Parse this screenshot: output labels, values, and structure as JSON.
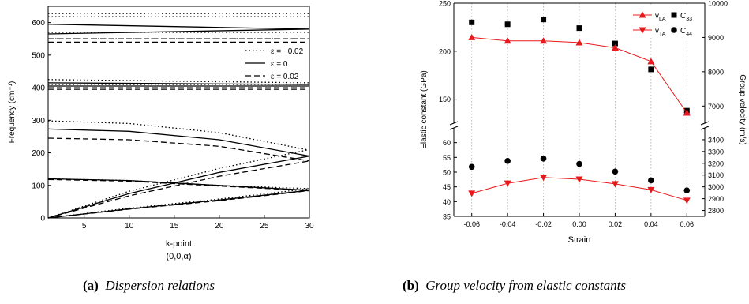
{
  "captions": {
    "a": {
      "label": "(a)",
      "text": "Dispersion relations"
    },
    "b": {
      "label": "(b)",
      "text": "Group velocity from elastic constants"
    }
  },
  "chart_data": [
    {
      "type": "line",
      "ylabel": "Frequency (cm⁻¹)",
      "xlabel": "k-point",
      "xlabel2": "(0,0,α)",
      "xlim": [
        1,
        30
      ],
      "ylim": [
        0,
        650
      ],
      "xticks": [
        5,
        10,
        15,
        20,
        25,
        30
      ],
      "yticks": [
        0,
        100,
        200,
        300,
        400,
        500,
        600
      ],
      "legend": {
        "placement": "right",
        "entries": [
          {
            "label": "ε = −0.02",
            "style": "dotted"
          },
          {
            "label": "ε = 0",
            "style": "solid"
          },
          {
            "label": "ε = 0.02",
            "style": "dashed"
          }
        ]
      },
      "series": [
        {
          "strain": "-0.02",
          "style": "dotted",
          "bands": [
            {
              "x": [
                1,
                30
              ],
              "y": [
                628,
                628
              ]
            },
            {
              "x": [
                1,
                30
              ],
              "y": [
                618,
                618
              ]
            },
            {
              "x": [
                1,
                30
              ],
              "y": [
                570,
                570
              ]
            },
            {
              "x": [
                1,
                30
              ],
              "y": [
                550,
                550
              ]
            },
            {
              "x": [
                1,
                30
              ],
              "y": [
                425,
                415
              ]
            },
            {
              "x": [
                1,
                30
              ],
              "y": [
                410,
                410
              ]
            },
            {
              "x": [
                1,
                10,
                20,
                30
              ],
              "y": [
                298,
                290,
                262,
                208
              ]
            },
            {
              "x": [
                1,
                10,
                20,
                30
              ],
              "y": [
                120,
                115,
                100,
                90
              ]
            },
            {
              "x": [
                1,
                10,
                20,
                30
              ],
              "y": [
                0,
                82,
                152,
                210
              ]
            },
            {
              "x": [
                1,
                10,
                20,
                30
              ],
              "y": [
                0,
                30,
                58,
                90
              ]
            }
          ]
        },
        {
          "strain": "0",
          "style": "solid",
          "bands": [
            {
              "x": [
                1,
                30
              ],
              "y": [
                595,
                580
              ]
            },
            {
              "x": [
                1,
                30
              ],
              "y": [
                565,
                580
              ]
            },
            {
              "x": [
                1,
                30
              ],
              "y": [
                415,
                410
              ]
            },
            {
              "x": [
                1,
                30
              ],
              "y": [
                405,
                405
              ]
            },
            {
              "x": [
                1,
                10,
                20,
                30
              ],
              "y": [
                273,
                266,
                240,
                190
              ]
            },
            {
              "x": [
                1,
                10,
                20,
                30
              ],
              "y": [
                120,
                115,
                100,
                85
              ]
            },
            {
              "x": [
                1,
                10,
                20,
                30
              ],
              "y": [
                0,
                75,
                140,
                190
              ]
            },
            {
              "x": [
                1,
                10,
                20,
                30
              ],
              "y": [
                0,
                28,
                55,
                85
              ]
            }
          ]
        },
        {
          "strain": "0.02",
          "style": "dashed",
          "bands": [
            {
              "x": [
                1,
                30
              ],
              "y": [
                550,
                550
              ]
            },
            {
              "x": [
                1,
                30
              ],
              "y": [
                540,
                540
              ]
            },
            {
              "x": [
                1,
                30
              ],
              "y": [
                400,
                400
              ]
            },
            {
              "x": [
                1,
                30
              ],
              "y": [
                395,
                395
              ]
            },
            {
              "x": [
                1,
                10,
                20,
                30
              ],
              "y": [
                245,
                240,
                220,
                175
              ]
            },
            {
              "x": [
                1,
                10,
                20,
                30
              ],
              "y": [
                118,
                113,
                98,
                84
              ]
            },
            {
              "x": [
                1,
                10,
                20,
                30
              ],
              "y": [
                0,
                68,
                128,
                175
              ]
            },
            {
              "x": [
                1,
                10,
                20,
                30
              ],
              "y": [
                0,
                27,
                53,
                84
              ]
            }
          ]
        }
      ]
    },
    {
      "type": "scatter",
      "xlabel": "Strain",
      "ylabel": "Elastic constant (GPa)",
      "y2label": "Group velocity (m/s)",
      "x": [
        -0.06,
        -0.04,
        -0.02,
        0.0,
        0.02,
        0.04,
        0.06
      ],
      "xticks": [
        -0.06,
        -0.04,
        -0.02,
        0.0,
        0.02,
        0.04,
        0.06
      ],
      "xtick_labels": [
        "-0.06",
        "-0.04",
        "-0.02",
        "0.00",
        "0.02",
        "0.04",
        "0.06"
      ],
      "ylim_lower": [
        35,
        65
      ],
      "ylim_upper": [
        125,
        250
      ],
      "yticks_lower": [
        35,
        40,
        45,
        50,
        55,
        60
      ],
      "yticks_upper": [
        150,
        200,
        250
      ],
      "y2lim_lower": [
        2750,
        3500
      ],
      "y2lim_upper": [
        6500,
        10000
      ],
      "y2ticks_lower": [
        2800,
        2900,
        3000,
        3100,
        3200,
        3300,
        3400
      ],
      "y2ticks_upper": [
        7000,
        8000,
        9000,
        10000
      ],
      "grid": "vertical dotted",
      "legend": {
        "placement": "top-right",
        "entries": [
          {
            "key": "vLA",
            "base": "v",
            "sub": "LA"
          },
          {
            "key": "C33",
            "base": "C",
            "sub": "33"
          },
          {
            "key": "vTA",
            "base": "v",
            "sub": "TA"
          },
          {
            "key": "C44",
            "base": "C",
            "sub": "44"
          }
        ]
      },
      "series": [
        {
          "key": "C33",
          "axis": "left",
          "marker": "square",
          "color": "#000000",
          "values": [
            230,
            228,
            233,
            224,
            208,
            181,
            138
          ]
        },
        {
          "key": "vLA",
          "axis": "right",
          "marker": "triangle-up",
          "color": "#e8191d",
          "values": [
            9000,
            8900,
            8900,
            8850,
            8700,
            8300,
            6800
          ]
        },
        {
          "key": "C44",
          "axis": "left",
          "marker": "circle",
          "color": "#000000",
          "values": [
            51.8,
            53.8,
            54.6,
            52.8,
            50.2,
            47.2,
            43.8
          ]
        },
        {
          "key": "vTA",
          "axis": "right",
          "marker": "triangle-down",
          "color": "#e8191d",
          "values": [
            2945,
            3030,
            3080,
            3065,
            3025,
            2975,
            2885
          ]
        }
      ]
    }
  ]
}
